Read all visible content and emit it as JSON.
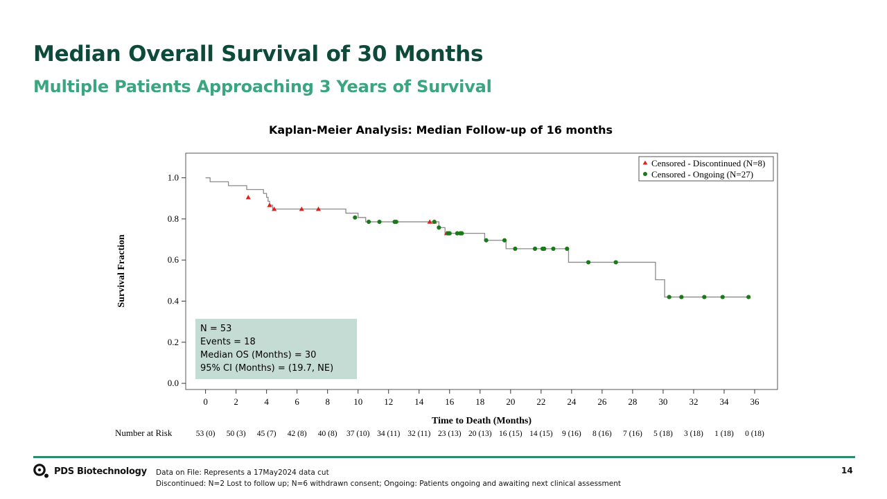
{
  "slide": {
    "title": "Median Overall Survival of 30 Months",
    "subtitle": "Multiple Patients Approaching 3 Years of Survival",
    "page_number": "14"
  },
  "colors": {
    "title": "#0e4a3a",
    "subtitle": "#3aa57f",
    "curve": "#8a8a8a",
    "discontinued_marker": "#e0201b",
    "ongoing_marker": "#1a7a1a",
    "stats_box": "#c5dcd5",
    "footer_rule": "#2b8c6c"
  },
  "chart_data": {
    "type": "line",
    "title": "Kaplan-Meier Analysis: Median Follow-up of 16 months",
    "xlabel": "Time to Death (Months)",
    "ylabel": "Survival Fraction",
    "xlim": [
      -1.3,
      37.5
    ],
    "ylim": [
      -0.03,
      1.12
    ],
    "x_ticks": [
      0,
      2,
      4,
      6,
      8,
      10,
      12,
      14,
      16,
      18,
      20,
      22,
      24,
      26,
      28,
      30,
      32,
      34,
      36
    ],
    "y_ticks": [
      0.0,
      0.2,
      0.4,
      0.6,
      0.8,
      1.0
    ],
    "y_tick_labels": [
      "0.0",
      "0.2",
      "0.4",
      "0.6",
      "0.8",
      "1.0"
    ],
    "legend_position": "top-right",
    "series": [
      {
        "name": "Kaplan-Meier estimate",
        "kind": "step",
        "points": [
          [
            0,
            1.0
          ],
          [
            0.3,
            0.981
          ],
          [
            1.5,
            0.962
          ],
          [
            2.7,
            0.943
          ],
          [
            3.8,
            0.924
          ],
          [
            4.0,
            0.905
          ],
          [
            4.1,
            0.886
          ],
          [
            4.2,
            0.867
          ],
          [
            4.4,
            0.848
          ],
          [
            9.2,
            0.828
          ],
          [
            10.0,
            0.807
          ],
          [
            10.5,
            0.786
          ],
          [
            15.3,
            0.758
          ],
          [
            15.7,
            0.73
          ],
          [
            18.3,
            0.696
          ],
          [
            19.7,
            0.655
          ],
          [
            23.8,
            0.589
          ],
          [
            29.5,
            0.504
          ],
          [
            30.1,
            0.42
          ],
          [
            35.6,
            0.42
          ]
        ]
      },
      {
        "name": "Censored - Discontinued (N=8)",
        "kind": "marker",
        "marker": "triangle",
        "points": [
          [
            2.8,
            0.905
          ],
          [
            4.2,
            0.867
          ],
          [
            4.5,
            0.848
          ],
          [
            6.3,
            0.848
          ],
          [
            7.4,
            0.848
          ],
          [
            14.7,
            0.786
          ],
          [
            15.0,
            0.786
          ],
          [
            15.8,
            0.73
          ]
        ]
      },
      {
        "name": "Censored - Ongoing (N=27)",
        "kind": "marker",
        "marker": "circle",
        "points": [
          [
            9.8,
            0.807
          ],
          [
            10.7,
            0.786
          ],
          [
            11.4,
            0.786
          ],
          [
            12.4,
            0.786
          ],
          [
            12.5,
            0.786
          ],
          [
            15.0,
            0.786
          ],
          [
            15.3,
            0.758
          ],
          [
            15.9,
            0.73
          ],
          [
            16.0,
            0.73
          ],
          [
            16.5,
            0.73
          ],
          [
            16.7,
            0.73
          ],
          [
            16.8,
            0.73
          ],
          [
            18.4,
            0.696
          ],
          [
            19.6,
            0.696
          ],
          [
            20.3,
            0.655
          ],
          [
            21.6,
            0.655
          ],
          [
            22.1,
            0.655
          ],
          [
            22.2,
            0.655
          ],
          [
            22.8,
            0.655
          ],
          [
            23.7,
            0.655
          ],
          [
            25.1,
            0.589
          ],
          [
            26.9,
            0.589
          ],
          [
            30.4,
            0.42
          ],
          [
            31.2,
            0.42
          ],
          [
            32.7,
            0.42
          ],
          [
            33.9,
            0.42
          ],
          [
            35.6,
            0.42
          ]
        ]
      }
    ],
    "risk_table": {
      "label": "Number at Risk",
      "values": [
        "53 (0)",
        "50 (3)",
        "45 (7)",
        "42 (8)",
        "40 (8)",
        "37 (10)",
        "34 (11)",
        "32 (11)",
        "23 (13)",
        "20 (13)",
        "16 (15)",
        "14 (15)",
        "9 (16)",
        "8 (16)",
        "7 (16)",
        "5 (18)",
        "3 (18)",
        "1 (18)",
        "0 (18)"
      ]
    }
  },
  "stats": {
    "n": "N = 53",
    "events": "Events = 18",
    "median": "Median OS (Months) = 30",
    "ci": "95% CI (Months) = (19.7, NE)"
  },
  "footer": {
    "company": "PDS Biotechnology",
    "logo_icon": "pds-logo-icon",
    "note1": "Data on File: Represents  a 17May2024 data cut",
    "note2": "Discontinued: N=2 Lost to follow up; N=6 withdrawn consent;  Ongoing: Patients ongoing and awaiting next clinical assessment"
  }
}
